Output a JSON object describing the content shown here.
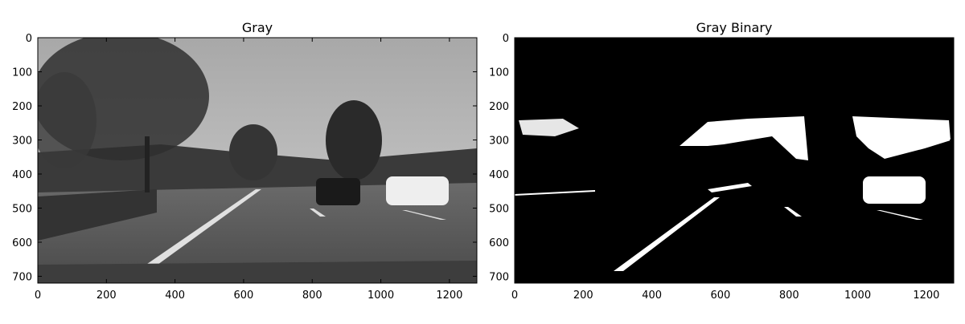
{
  "chart_data": [
    {
      "type": "image",
      "title": "Gray",
      "colormap": "gray",
      "xlim": [
        0,
        1280
      ],
      "ylim": [
        720,
        0
      ],
      "xticks": [
        "0",
        "200",
        "400",
        "600",
        "800",
        "1000",
        "1200"
      ],
      "yticks": [
        "0",
        "100",
        "200",
        "300",
        "400",
        "500",
        "600",
        "700"
      ]
    },
    {
      "type": "image",
      "title": "Gray Binary",
      "colormap": "binary",
      "xlim": [
        0,
        1280
      ],
      "ylim": [
        720,
        0
      ],
      "xticks": [
        "0",
        "200",
        "400",
        "600",
        "800",
        "1000",
        "1200"
      ],
      "yticks": [
        "0",
        "100",
        "200",
        "300",
        "400",
        "500",
        "600",
        "700"
      ]
    }
  ]
}
